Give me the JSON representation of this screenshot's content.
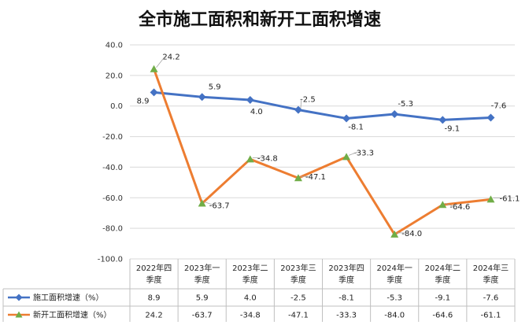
{
  "chart_data": {
    "type": "line",
    "title": "全市施工面积和新开工面积增速",
    "categories": [
      [
        "2022年四",
        "季度"
      ],
      [
        "2023年一",
        "季度"
      ],
      [
        "2023年二",
        "季度"
      ],
      [
        "2023年三",
        "季度"
      ],
      [
        "2023年四",
        "季度"
      ],
      [
        "2024年一",
        "季度"
      ],
      [
        "2024年二",
        "季度"
      ],
      [
        "2024年三",
        "季度"
      ]
    ],
    "ylim": [
      -100,
      40
    ],
    "yticks": [
      "40.0",
      "20.0",
      "0.0",
      "-20.0",
      "-40.0",
      "-60.0",
      "-80.0",
      "-100.0"
    ],
    "yticks_values": [
      40,
      20,
      0,
      -20,
      -40,
      -60,
      -80,
      -100
    ],
    "grid": true,
    "legend": "table-bottom",
    "series": [
      {
        "name": "施工面积增速（%）",
        "color": "#4472C4",
        "marker": "diamond",
        "values": [
          8.9,
          5.9,
          4.0,
          -2.5,
          -8.1,
          -5.3,
          -9.1,
          -7.6
        ],
        "labels": [
          "8.9",
          "5.9",
          "4.0",
          "-2.5",
          "-8.1",
          "-5.3",
          "-9.1",
          "-7.6"
        ]
      },
      {
        "name": "新开工面积增速（%）",
        "color": "#ED7D31",
        "marker": "triangle",
        "marker_color": "#70AD47",
        "values": [
          24.2,
          -63.7,
          -34.8,
          -47.1,
          -33.3,
          -84.0,
          -64.6,
          -61.1
        ],
        "labels": [
          "24.2",
          "-63.7",
          "-34.8",
          "-47.1",
          "-33.3",
          "-84.0",
          "-64.6",
          "-61.1"
        ]
      }
    ]
  }
}
